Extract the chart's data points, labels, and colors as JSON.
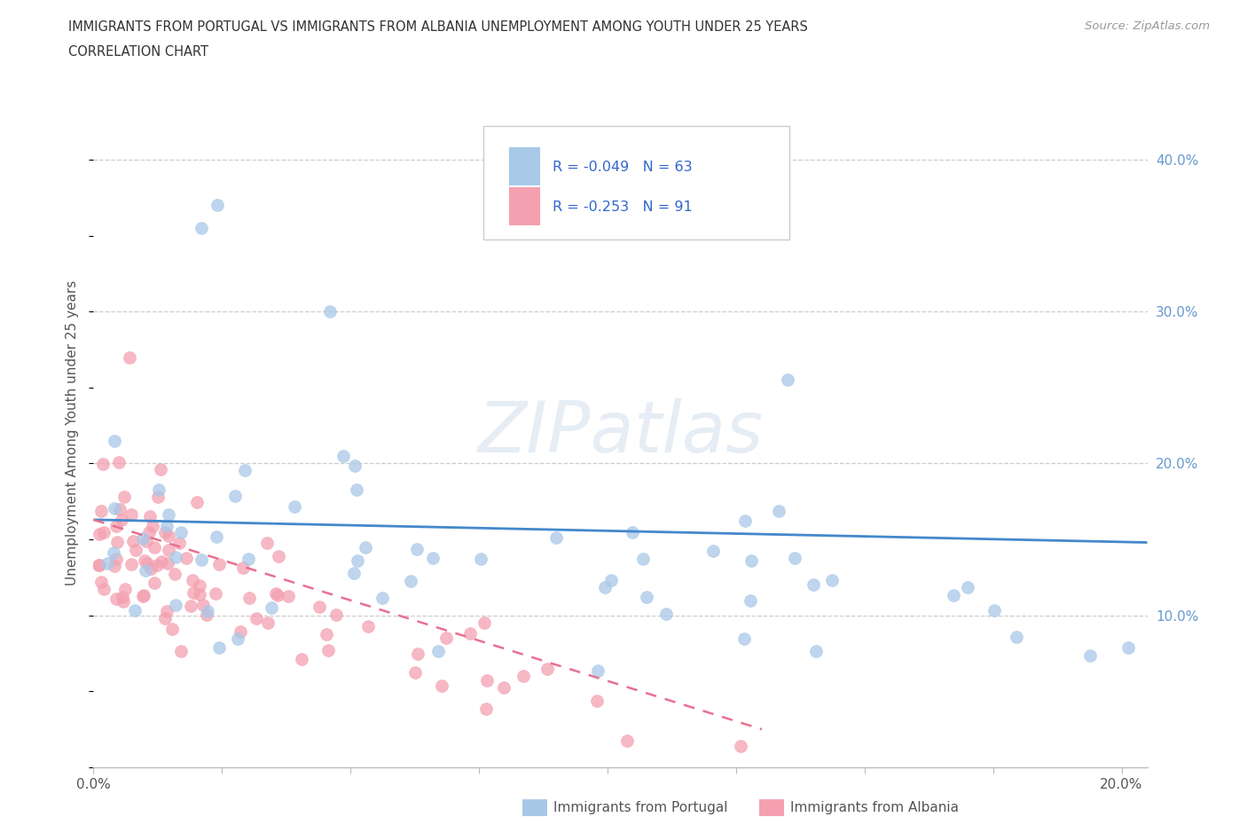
{
  "title_line1": "IMMIGRANTS FROM PORTUGAL VS IMMIGRANTS FROM ALBANIA UNEMPLOYMENT AMONG YOUTH UNDER 25 YEARS",
  "title_line2": "CORRELATION CHART",
  "source_text": "Source: ZipAtlas.com",
  "ylabel": "Unemployment Among Youth under 25 years",
  "xlim": [
    0.0,
    0.205
  ],
  "ylim": [
    0.0,
    0.44
  ],
  "yticks": [
    0.1,
    0.2,
    0.3,
    0.4
  ],
  "ytick_labels": [
    "10.0%",
    "20.0%",
    "30.0%",
    "40.0%"
  ],
  "xtick_positions": [
    0.0,
    0.025,
    0.05,
    0.075,
    0.1,
    0.125,
    0.15,
    0.175,
    0.2
  ],
  "xtick_show": [
    "0.0%",
    "",
    "",
    "",
    "",
    "",
    "",
    "",
    "20.0%"
  ],
  "watermark": "ZIPatlas",
  "legend_r1": "R = -0.049",
  "legend_n1": "N = 63",
  "legend_r2": "R = -0.253",
  "legend_n2": "N = 91",
  "color_portugal": "#A8C8E8",
  "color_albania": "#F4A0B0",
  "trendline_portugal_color": "#4488CC",
  "trendline_albania_color": "#E87090",
  "background_color": "#FFFFFF",
  "grid_color": "#CCCCCC",
  "title_color": "#333333",
  "source_color": "#999999",
  "axis_label_color": "#555555",
  "right_tick_color": "#6699CC",
  "legend_text_color": "#3366CC",
  "port_trend_x0": 0.0,
  "port_trend_x1": 0.205,
  "port_trend_y0": 0.163,
  "port_trend_y1": 0.148,
  "alb_trend_x0": 0.0,
  "alb_trend_x1": 0.13,
  "alb_trend_y0": 0.163,
  "alb_trend_y1": 0.025
}
